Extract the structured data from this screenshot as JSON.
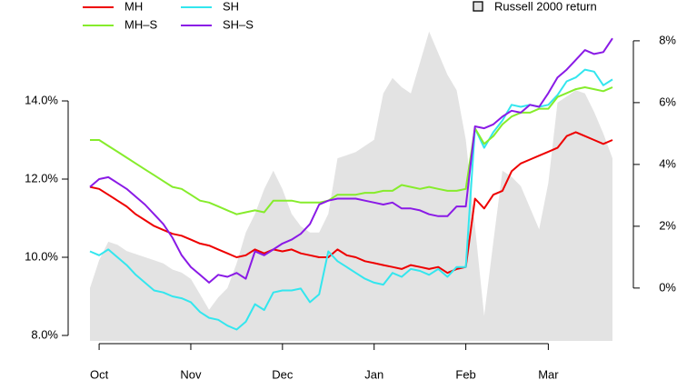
{
  "chart_data": {
    "type": "line",
    "categories": [
      null,
      "Oct",
      null,
      null,
      null,
      null,
      null,
      null,
      null,
      null,
      null,
      "Nov",
      null,
      null,
      null,
      null,
      null,
      null,
      null,
      null,
      null,
      "Dec",
      null,
      null,
      null,
      null,
      null,
      null,
      null,
      null,
      null,
      "Jan",
      null,
      null,
      null,
      null,
      null,
      null,
      null,
      null,
      null,
      "Feb",
      null,
      null,
      null,
      null,
      null,
      null,
      null,
      null,
      "Mar",
      null,
      null,
      null,
      null,
      null,
      null,
      null
    ],
    "series": [
      {
        "name": "Russell 2000 return",
        "type": "area",
        "axis": "y2",
        "color": "#e3e3e3",
        "values": [
          0.0,
          0.9,
          1.5,
          1.4,
          1.2,
          1.1,
          1.0,
          0.9,
          0.8,
          0.6,
          0.5,
          0.3,
          -0.2,
          -0.7,
          -0.3,
          0.0,
          0.8,
          1.8,
          2.4,
          3.2,
          3.8,
          3.2,
          2.4,
          2.0,
          1.8,
          1.8,
          2.4,
          4.2,
          4.3,
          4.4,
          4.6,
          4.8,
          6.3,
          6.8,
          6.5,
          6.3,
          7.3,
          8.3,
          7.6,
          6.9,
          6.4,
          4.8,
          2.0,
          -0.9,
          1.5,
          3.8,
          3.6,
          3.3,
          2.6,
          1.9,
          3.4,
          6.0,
          6.2,
          6.4,
          6.3,
          5.7,
          5.0,
          4.2
        ]
      },
      {
        "name": "MH",
        "color": "#ee0000",
        "values": [
          11.8,
          11.75,
          11.6,
          11.45,
          11.3,
          11.1,
          10.95,
          10.8,
          10.7,
          10.6,
          10.55,
          10.45,
          10.35,
          10.3,
          10.2,
          10.1,
          10.0,
          10.05,
          10.2,
          10.1,
          10.2,
          10.15,
          10.2,
          10.1,
          10.05,
          10.0,
          10.0,
          10.2,
          10.05,
          10.0,
          9.9,
          9.85,
          9.8,
          9.75,
          9.7,
          9.8,
          9.75,
          9.7,
          9.75,
          9.6,
          9.7,
          9.75,
          11.5,
          11.25,
          11.6,
          11.7,
          12.2,
          12.4,
          12.5,
          12.6,
          12.7,
          12.8,
          13.1,
          13.2,
          13.1,
          13.0,
          12.9,
          13.0
        ]
      },
      {
        "name": "SH",
        "color": "#33e6ee",
        "values": [
          10.15,
          10.05,
          10.2,
          10.0,
          9.8,
          9.55,
          9.35,
          9.15,
          9.1,
          9.0,
          8.95,
          8.85,
          8.6,
          8.45,
          8.4,
          8.25,
          8.15,
          8.35,
          8.8,
          8.65,
          9.1,
          9.15,
          9.15,
          9.2,
          8.85,
          9.05,
          10.15,
          9.9,
          9.75,
          9.6,
          9.45,
          9.35,
          9.3,
          9.6,
          9.5,
          9.7,
          9.65,
          9.55,
          9.7,
          9.5,
          9.75,
          9.75,
          13.3,
          12.8,
          13.2,
          13.5,
          13.9,
          13.85,
          13.9,
          13.85,
          13.9,
          14.15,
          14.5,
          14.6,
          14.8,
          14.75,
          14.4,
          14.55
        ]
      },
      {
        "name": "MH–S",
        "color": "#86ec2c",
        "values": [
          13.0,
          13.0,
          12.85,
          12.7,
          12.55,
          12.4,
          12.25,
          12.1,
          11.95,
          11.8,
          11.75,
          11.6,
          11.45,
          11.4,
          11.3,
          11.2,
          11.1,
          11.15,
          11.2,
          11.15,
          11.45,
          11.45,
          11.45,
          11.4,
          11.4,
          11.4,
          11.45,
          11.6,
          11.6,
          11.6,
          11.65,
          11.65,
          11.7,
          11.7,
          11.85,
          11.8,
          11.75,
          11.8,
          11.75,
          11.7,
          11.7,
          11.75,
          13.3,
          12.9,
          13.1,
          13.4,
          13.6,
          13.7,
          13.7,
          13.8,
          13.8,
          14.1,
          14.2,
          14.3,
          14.35,
          14.3,
          14.25,
          14.35
        ]
      },
      {
        "name": "SH–S",
        "color": "#8a1ae6",
        "values": [
          11.8,
          12.0,
          12.05,
          11.9,
          11.75,
          11.55,
          11.35,
          11.1,
          10.85,
          10.5,
          10.05,
          9.75,
          9.55,
          9.35,
          9.55,
          9.5,
          9.6,
          9.45,
          10.15,
          10.05,
          10.2,
          10.35,
          10.45,
          10.6,
          10.85,
          11.35,
          11.45,
          11.5,
          11.5,
          11.5,
          11.45,
          11.4,
          11.35,
          11.4,
          11.25,
          11.25,
          11.2,
          11.1,
          11.05,
          11.05,
          11.3,
          11.3,
          13.35,
          13.3,
          13.4,
          13.6,
          13.75,
          13.7,
          13.9,
          13.85,
          14.2,
          14.6,
          14.8,
          15.05,
          15.3,
          15.2,
          15.25,
          15.6
        ]
      }
    ],
    "ylim": [
      7.86,
      16.21
    ],
    "yticks": [
      {
        "value": 8,
        "label": "8.0%"
      },
      {
        "value": 10,
        "label": "10.0%"
      },
      {
        "value": 12,
        "label": "12.0%"
      },
      {
        "value": 14,
        "label": "14.0%"
      }
    ],
    "y2lim": [
      -1.71,
      8.85
    ],
    "y2ticks": [
      {
        "value": 0,
        "label": "0%"
      },
      {
        "value": 2,
        "label": "2%"
      },
      {
        "value": 4,
        "label": "4%"
      },
      {
        "value": 6,
        "label": "6%"
      },
      {
        "value": 8,
        "label": "8%"
      }
    ],
    "grid": false
  }
}
